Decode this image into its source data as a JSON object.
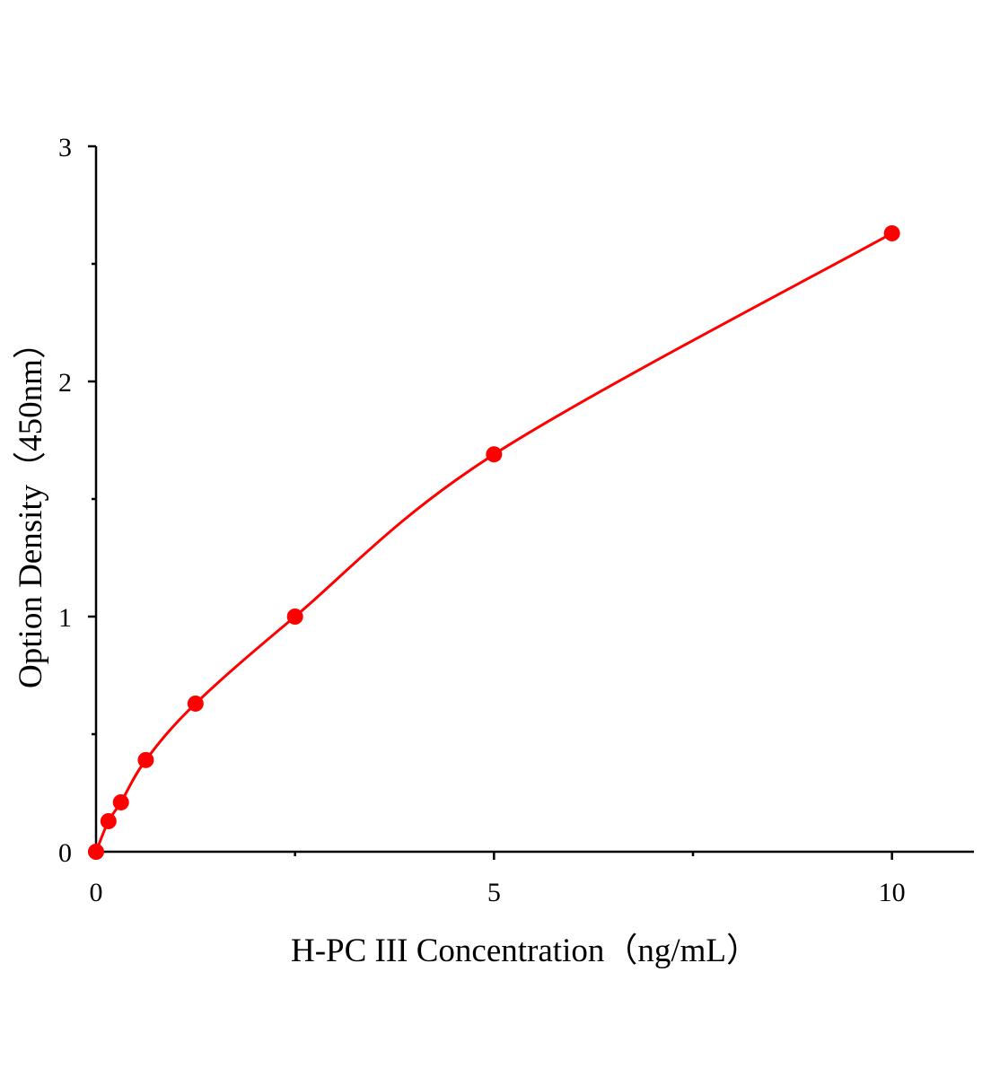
{
  "chart_data": {
    "type": "scatter",
    "x_label": "H-PC III Concentration（ng/mL）",
    "y_label": "Option Density（450nm）",
    "x": [
      0,
      0.156,
      0.3125,
      0.625,
      1.25,
      2.5,
      5,
      10
    ],
    "series": [
      {
        "color": "#ff0000",
        "values": [
          0,
          0.13,
          0.21,
          0.39,
          0.63,
          1.0,
          1.69,
          2.63
        ]
      }
    ],
    "xlim": [
      0,
      11.03
    ],
    "ylim": [
      0,
      3
    ],
    "xticks": [
      0,
      5,
      10
    ],
    "yticks": [
      0,
      1,
      2,
      3
    ],
    "xminor_ticks": [
      2.5,
      7.5
    ],
    "yminor_ticks": [
      0.5,
      1.5,
      2.5
    ],
    "fit_line": true
  }
}
